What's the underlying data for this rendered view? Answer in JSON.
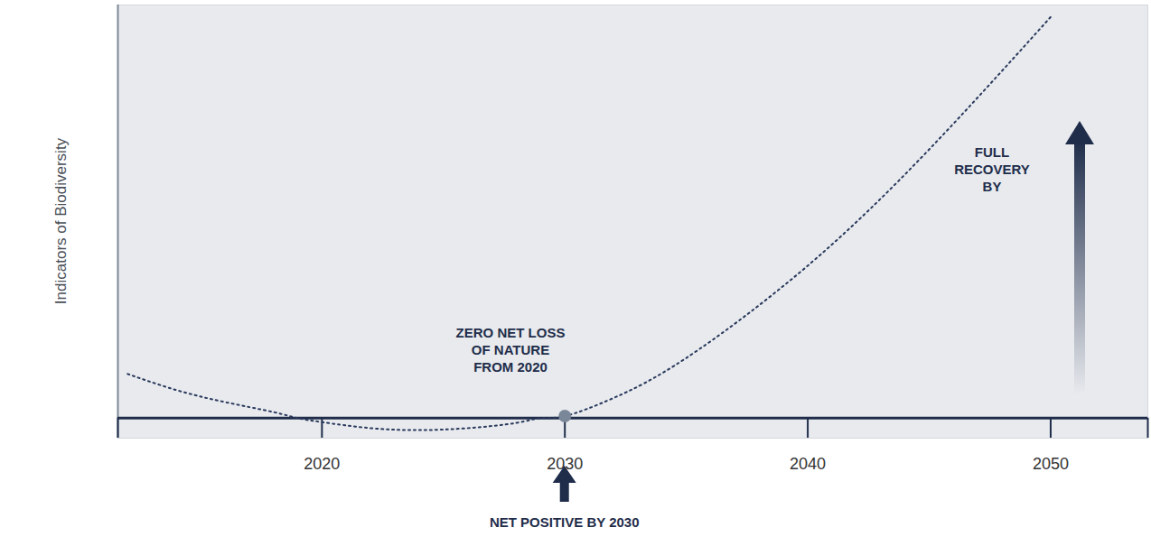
{
  "chart_data": {
    "type": "line",
    "y_label": "Indicators of Biodiversity",
    "x": [
      2012,
      2014,
      2016,
      2018,
      2019,
      2020,
      2022,
      2024,
      2026,
      2028,
      2029,
      2030,
      2032,
      2035,
      2040,
      2045,
      2050
    ],
    "values": [
      11,
      7,
      4,
      1.5,
      0,
      -1,
      -2.5,
      -3,
      -2.5,
      -1.2,
      0,
      0.5,
      5,
      15,
      38,
      67,
      100
    ],
    "color": "#2a3a5c",
    "line_style": "dotted",
    "highlight_x": 2030,
    "xlim": [
      2011.6,
      2054
    ],
    "ylim": [
      -5,
      103
    ],
    "xticks": [
      2020,
      2030,
      2040,
      2050
    ],
    "yticks": [
      0
    ],
    "tick_labels": "x",
    "grid": false,
    "annotations": [
      "ZERO NET LOSS OF NATURE FROM 2020",
      "NET POSITIVE BY 2030",
      "FULL RECOVERY BY"
    ]
  }
}
